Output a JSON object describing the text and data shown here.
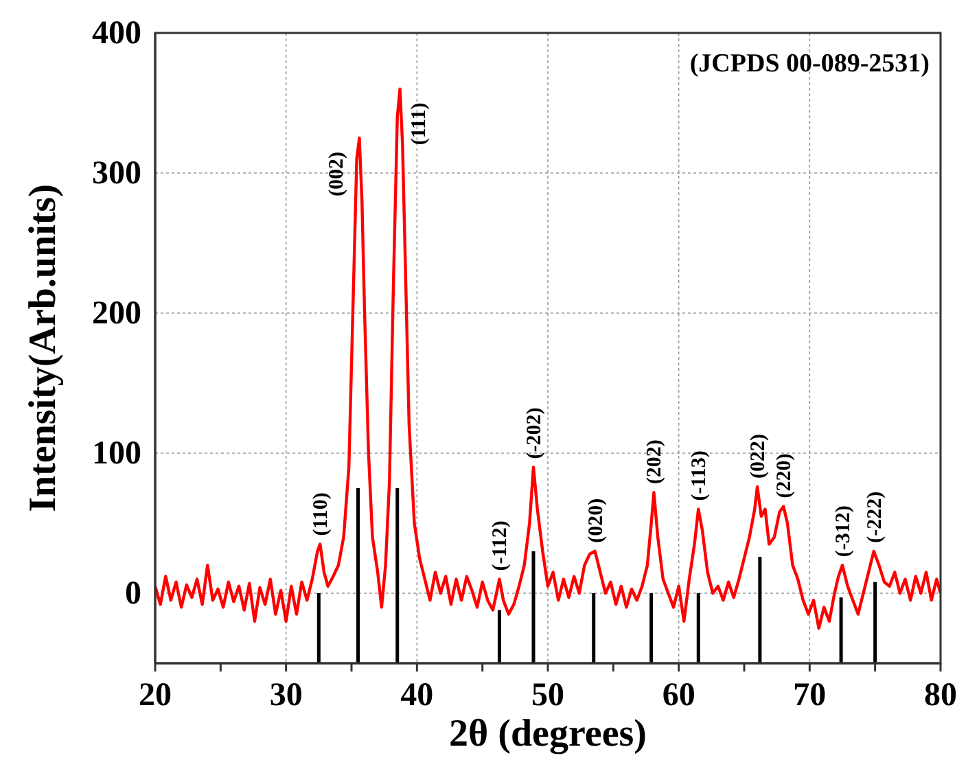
{
  "chart_data": {
    "type": "line",
    "xlabel": "2θ (degrees)",
    "ylabel": "Intensity(Arb.units)",
    "xlim": [
      20,
      80
    ],
    "ylim": [
      -50,
      400
    ],
    "xticks": [
      20,
      {
        "value": 25,
        "label": null
      },
      30,
      {
        "value": 35,
        "label": null
      },
      40,
      {
        "value": 45,
        "label": null
      },
      50,
      {
        "value": 55,
        "label": null
      },
      60,
      {
        "value": 65,
        "label": null
      },
      70,
      {
        "value": 75,
        "label": null
      },
      80
    ],
    "yticks": [
      0,
      100,
      200,
      300,
      400
    ],
    "grid": true,
    "series": [
      {
        "color": "#ff0000",
        "x": [
          20,
          20.4,
          20.8,
          21.2,
          21.6,
          22,
          22.4,
          22.8,
          23.2,
          23.6,
          24,
          24.4,
          24.8,
          25.2,
          25.6,
          26,
          26.4,
          26.8,
          27.2,
          27.6,
          28,
          28.4,
          28.8,
          29.2,
          29.6,
          30,
          30.4,
          30.8,
          31.2,
          31.6,
          32,
          32.4,
          32.6,
          32.9,
          33.2,
          33.6,
          34,
          34.4,
          34.8,
          35.1,
          35.4,
          35.6,
          35.8,
          36,
          36.3,
          36.6,
          37,
          37.3,
          37.6,
          37.9,
          38.2,
          38.5,
          38.7,
          38.9,
          39.1,
          39.4,
          39.8,
          40.2,
          40.6,
          41,
          41.4,
          41.8,
          42.2,
          42.6,
          43,
          43.4,
          43.8,
          44.2,
          44.6,
          45,
          45.4,
          45.8,
          46.3,
          46.6,
          47,
          47.4,
          47.8,
          48.2,
          48.6,
          48.9,
          49.2,
          49.6,
          50,
          50.4,
          50.8,
          51.2,
          51.6,
          52,
          52.4,
          52.8,
          53.2,
          53.6,
          54,
          54.4,
          54.8,
          55.2,
          55.6,
          56,
          56.4,
          56.8,
          57.2,
          57.6,
          57.9,
          58.1,
          58.4,
          58.8,
          59.2,
          59.6,
          60,
          60.4,
          60.8,
          61.2,
          61.5,
          61.8,
          62.2,
          62.6,
          63,
          63.4,
          63.8,
          64.2,
          64.6,
          65,
          65.4,
          65.8,
          66,
          66.3,
          66.6,
          66.9,
          67.3,
          67.7,
          68,
          68.3,
          68.7,
          69.1,
          69.5,
          69.9,
          70.3,
          70.7,
          71.1,
          71.5,
          71.9,
          72.2,
          72.5,
          72.9,
          73.3,
          73.7,
          74.1,
          74.5,
          74.9,
          75.3,
          75.7,
          76.1,
          76.5,
          76.9,
          77.3,
          77.7,
          78.1,
          78.5,
          78.9,
          79.3,
          79.7,
          80
        ],
        "values": [
          5,
          -8,
          12,
          -5,
          8,
          -10,
          6,
          -3,
          10,
          -8,
          20,
          -5,
          3,
          -10,
          8,
          -6,
          5,
          -12,
          7,
          -20,
          4,
          -8,
          10,
          -15,
          2,
          -20,
          5,
          -15,
          8,
          -5,
          10,
          30,
          35,
          15,
          5,
          12,
          20,
          40,
          90,
          200,
          310,
          325,
          280,
          200,
          100,
          40,
          15,
          -10,
          20,
          80,
          220,
          340,
          360,
          320,
          240,
          120,
          50,
          25,
          10,
          -5,
          15,
          0,
          12,
          -8,
          10,
          -5,
          12,
          2,
          -10,
          8,
          -5,
          -12,
          10,
          -5,
          -15,
          -8,
          5,
          20,
          50,
          90,
          60,
          30,
          5,
          15,
          -5,
          10,
          -3,
          12,
          0,
          20,
          28,
          30,
          15,
          0,
          8,
          -8,
          5,
          -10,
          3,
          -5,
          5,
          20,
          50,
          72,
          40,
          10,
          0,
          -10,
          5,
          -20,
          10,
          35,
          60,
          45,
          15,
          0,
          5,
          -5,
          8,
          -3,
          10,
          25,
          40,
          60,
          76,
          55,
          60,
          35,
          40,
          58,
          62,
          50,
          20,
          10,
          -5,
          -15,
          -5,
          -25,
          -10,
          -20,
          0,
          12,
          20,
          5,
          -5,
          -15,
          0,
          15,
          30,
          20,
          8,
          5,
          15,
          0,
          10,
          -5,
          12,
          0,
          15,
          -5,
          10,
          0
        ]
      },
      {
        "type": "bar",
        "color": "#000000",
        "x": [
          32.5,
          35.5,
          38.5,
          46.3,
          48.9,
          53.5,
          57.9,
          61.5,
          66.2,
          72.4,
          75.0
        ],
        "base": [
          -50,
          -50,
          -50,
          -50,
          -50,
          -50,
          -50,
          -50,
          -50,
          -50,
          -50
        ],
        "values": [
          50,
          125,
          125,
          38,
          80,
          50,
          50,
          50,
          76,
          47,
          58
        ]
      }
    ],
    "annotations": [
      {
        "text": "(110)",
        "x": 32.6,
        "y": 35
      },
      {
        "text": "(002)",
        "x": 35.6,
        "y": 325
      },
      {
        "text": "(111)",
        "x": 38.7,
        "y": 360
      },
      {
        "text": "(-112)",
        "x": 46.3,
        "y": 10
      },
      {
        "text": "(-202)",
        "x": 48.9,
        "y": 90
      },
      {
        "text": "(020)",
        "x": 53.6,
        "y": 30
      },
      {
        "text": "(202)",
        "x": 58.1,
        "y": 72
      },
      {
        "text": "(-113)",
        "x": 61.5,
        "y": 60
      },
      {
        "text": "(022)",
        "x": 66,
        "y": 76
      },
      {
        "text": "(220)",
        "x": 68,
        "y": 62
      },
      {
        "text": "(-312)",
        "x": 72.5,
        "y": 20
      },
      {
        "text": "(-222)",
        "x": 74.9,
        "y": 30
      },
      "(JCPDS 00-089-2531)"
    ]
  }
}
